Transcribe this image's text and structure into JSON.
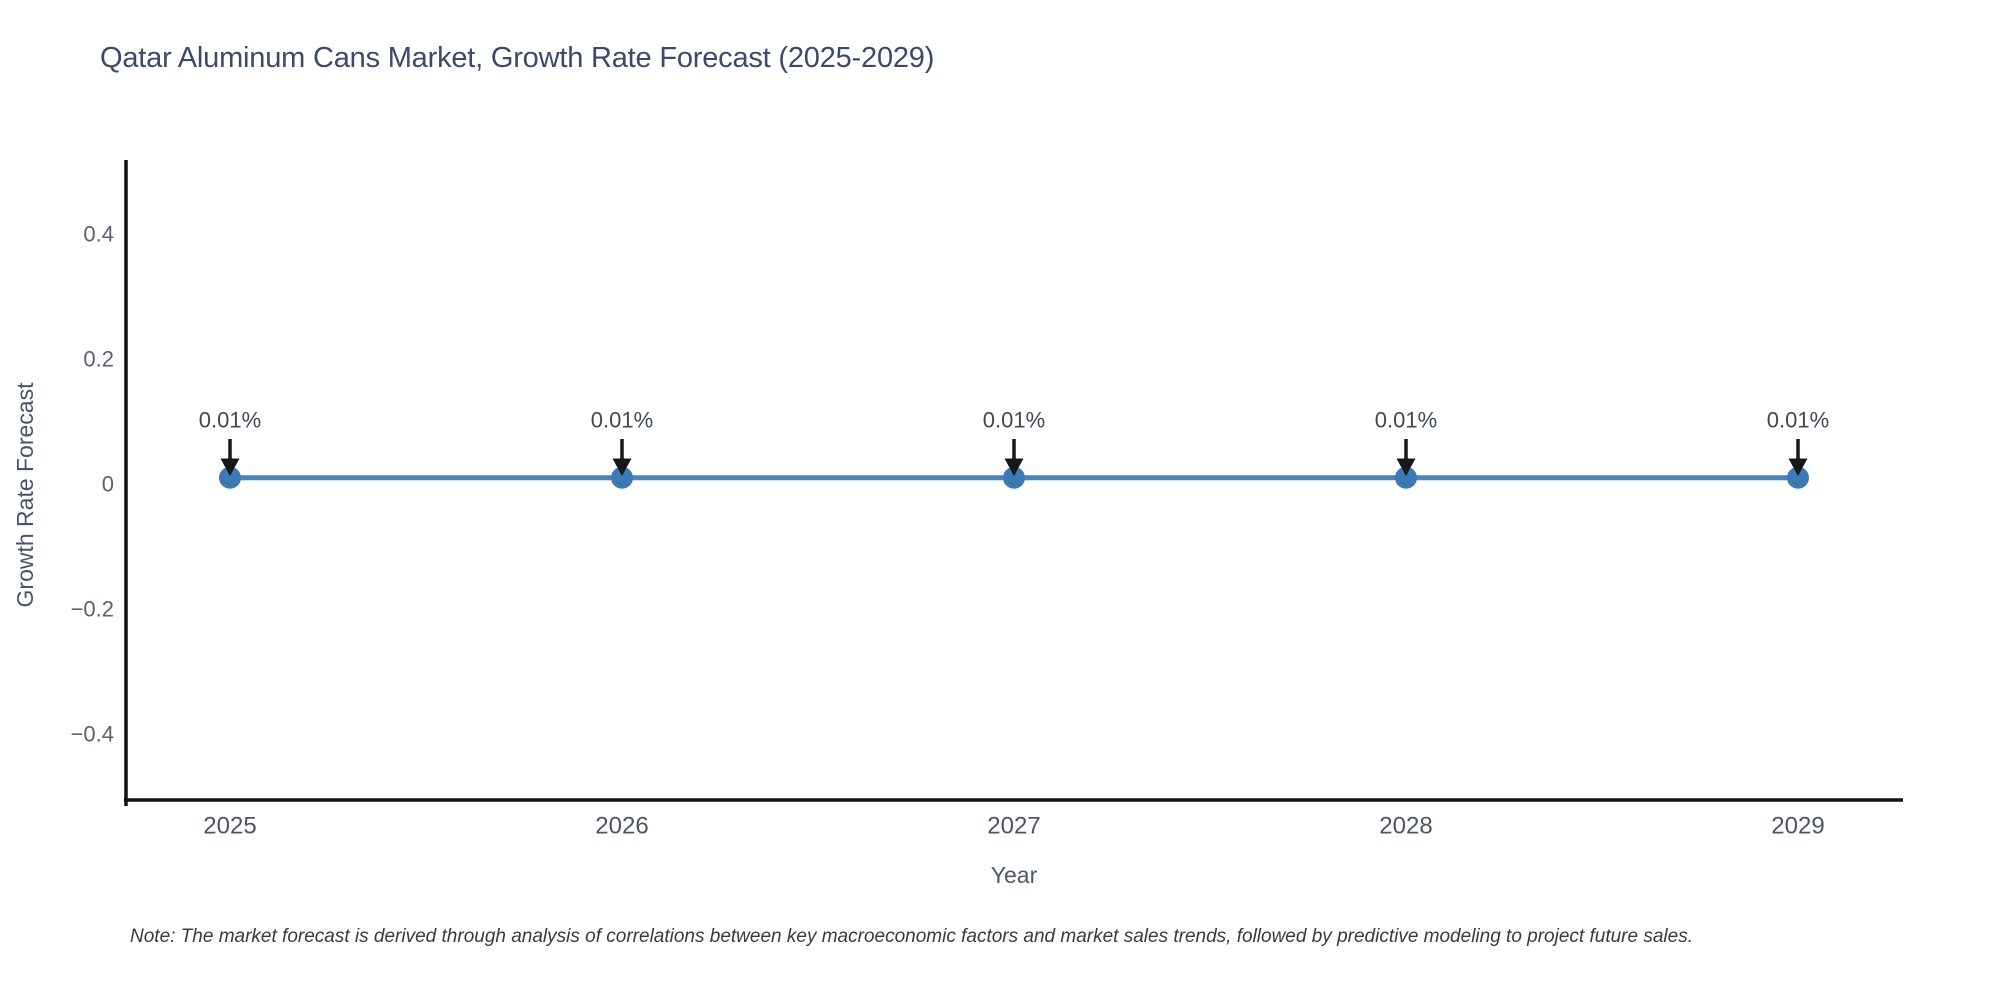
{
  "note": "Note: The market forecast is derived through analysis of correlations between key macroeconomic factors and market sales trends, followed by predictive modeling to project future sales.",
  "chart_data": {
    "type": "line",
    "title": "Qatar Aluminum Cans Market, Growth Rate Forecast (2025-2029)",
    "xlabel": "Year",
    "ylabel": "Growth Rate Forecast",
    "categories": [
      "2025",
      "2026",
      "2027",
      "2028",
      "2029"
    ],
    "series": [
      {
        "name": "Growth Rate Forecast",
        "values": [
          0.01,
          0.01,
          0.01,
          0.01,
          0.01
        ]
      }
    ],
    "point_labels": [
      "0.01%",
      "0.01%",
      "0.01%",
      "0.01%",
      "0.01%"
    ],
    "annotation_style": "down-arrow",
    "ytick_values": [
      0.4,
      0.2,
      0,
      -0.2,
      -0.4
    ],
    "ytick_labels": [
      "0.4",
      "0.2",
      "0",
      "−0.2",
      "−0.4"
    ],
    "ylim": [
      -0.51,
      0.52
    ],
    "grid": false,
    "legend_position": "none",
    "colors": {
      "line": "#4c84ba",
      "marker": "#3d7ab5",
      "axis": "#111111",
      "arrow": "#15181c",
      "x_tick_text": "#4d5565",
      "y_tick_text": "#5a6170",
      "annotation_text": "#3f4754",
      "title_text": "#3b4a68",
      "axis_title_text": "#4d5868",
      "note_text": "#3a3a3a",
      "background": "#ffffff"
    }
  }
}
